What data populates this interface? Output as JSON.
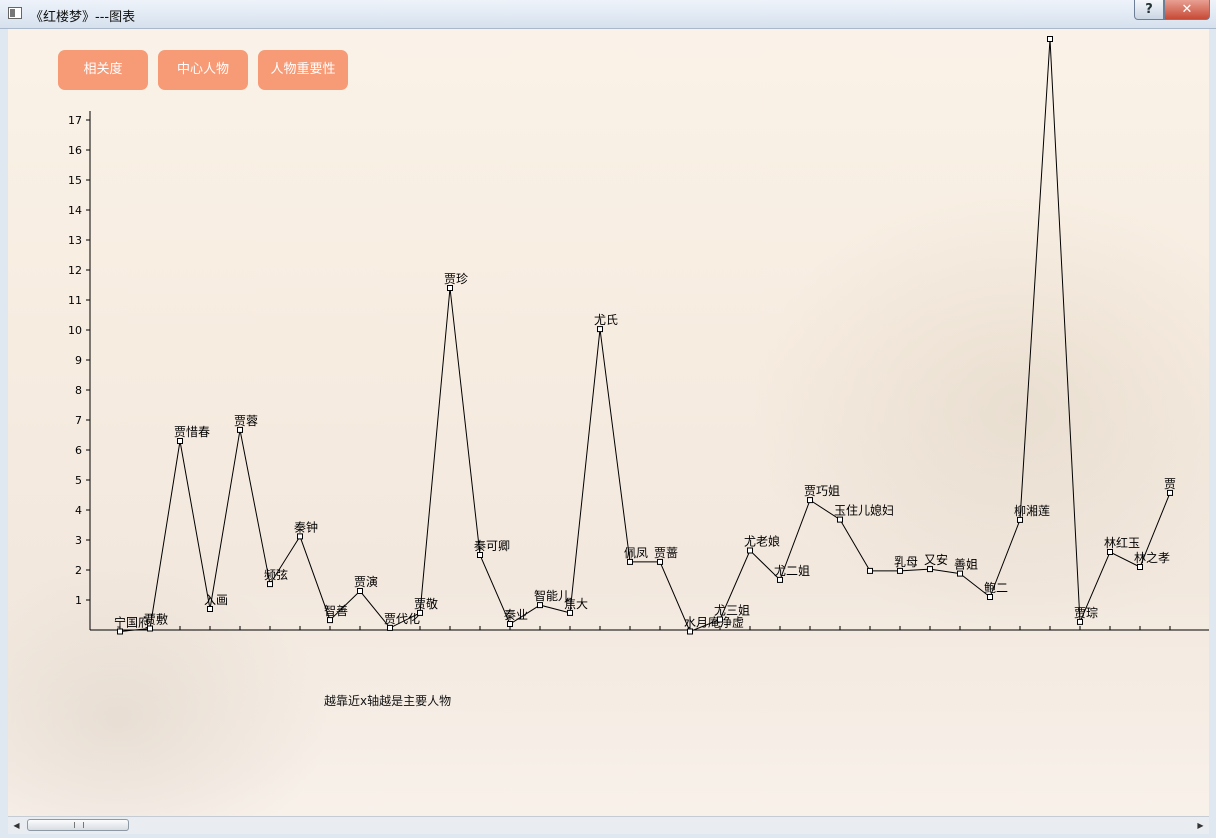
{
  "window": {
    "title": "《红楼梦》---图表",
    "help_label": "?",
    "close_label": "✕"
  },
  "toolbar": {
    "buttons": [
      {
        "label": "相关度"
      },
      {
        "label": "中心人物"
      },
      {
        "label": "人物重要性"
      }
    ]
  },
  "note": "越靠近x轴越是主要人物",
  "scrollbar": {
    "left_icon": "left-arrow-icon",
    "right_icon": "right-arrow-icon"
  },
  "chart_data": {
    "type": "line",
    "title": "",
    "xlabel": "",
    "ylabel": "",
    "ylim": [
      0,
      17.3
    ],
    "yticks": [
      1,
      2,
      3,
      4,
      5,
      6,
      7,
      8,
      9,
      10,
      11,
      12,
      13,
      14,
      15,
      16,
      17
    ],
    "line_color": "#000000",
    "categories": [
      "宁国府",
      "贾敷",
      "贾惜春",
      "入画",
      "贾蓉",
      "频弦",
      "秦钟",
      "智善",
      "贾演",
      "贾代化",
      "贾敬",
      "贾珍",
      "秦可卿",
      "秦业",
      "智能儿",
      "焦大",
      "尤氏",
      "佩凤",
      "贾蔷",
      "水月庵净虚",
      "尤三姐",
      "尤老娘",
      "尤二姐",
      "贾巧姐",
      "玉住儿媳妇",
      "",
      "乳母",
      "又安",
      "善姐",
      "鲍二",
      "柳湘莲",
      "",
      "贾琮",
      "林红玉",
      "林之孝",
      "贾"
    ],
    "values": [
      -0.05,
      0.05,
      6.3,
      0.7,
      6.67,
      1.53,
      3.12,
      0.33,
      1.3,
      0.07,
      0.57,
      11.4,
      2.5,
      0.2,
      0.83,
      0.57,
      10.03,
      2.27,
      2.27,
      -0.05,
      0.35,
      2.65,
      1.67,
      4.33,
      3.68,
      1.97,
      1.97,
      2.03,
      1.88,
      1.1,
      3.67,
      19.7,
      0.27,
      2.6,
      2.1,
      4.57
    ]
  }
}
